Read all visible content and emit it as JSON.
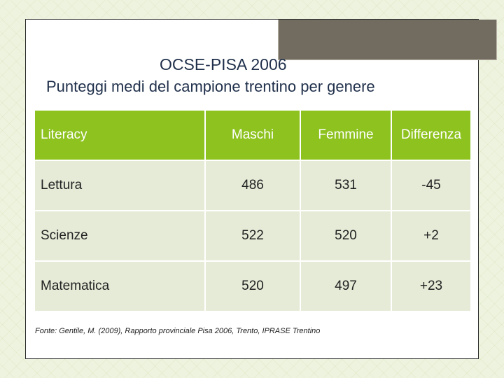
{
  "slide": {
    "title": "OCSE-PISA 2006",
    "subtitle": "Punteggi medi del campione trentino per genere"
  },
  "table": {
    "headers": [
      "Literacy",
      "Maschi",
      "Femmine",
      "Differenza"
    ],
    "rows": [
      [
        "Lettura",
        "486",
        "531",
        "-45"
      ],
      [
        "Scienze",
        "522",
        "520",
        "+2"
      ],
      [
        "Matematica",
        "520",
        "497",
        "+23"
      ]
    ]
  },
  "source": "Fonte: Gentile, M. (2009), Rapporto provinciale Pisa 2006, Trento, IPRASE Trentino",
  "colors": {
    "header_fill": "#8dc21f",
    "row_fill": "#e5ebd7",
    "title_color": "#1f2f4a",
    "accent_tab": "#726c60"
  }
}
